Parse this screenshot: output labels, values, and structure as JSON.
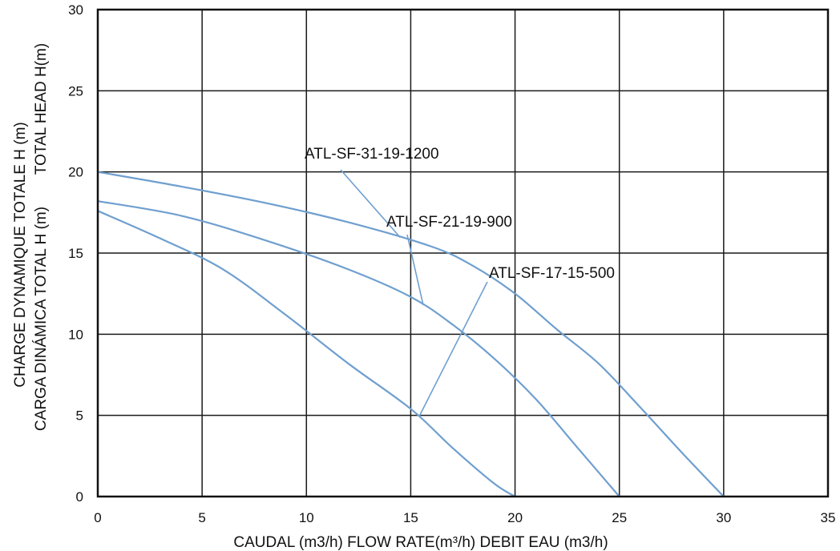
{
  "chart_data": {
    "type": "line",
    "xlabel": "CAUDAL (m3/h)  FLOW RATE(m³/h)  DEBIT EAU (m3/h)",
    "ylabel_lines": [
      "CHARGE DYNAMIQUE TOTALE H (m)",
      "CARGA DINÁMICA TOTAL H (m)",
      "TOTAL HEAD H(m)"
    ],
    "xlim": [
      0,
      35
    ],
    "ylim": [
      0,
      30
    ],
    "xticks": [
      0,
      5,
      10,
      15,
      20,
      25,
      30,
      35
    ],
    "yticks": [
      0,
      5,
      10,
      15,
      20,
      25,
      30
    ],
    "grid": true,
    "series": [
      {
        "name": "ATL-SF-31-19-1200",
        "color": "#6f9fcf",
        "x": [
          0,
          4,
          8,
          12,
          16,
          18,
          20,
          22,
          24,
          26,
          28,
          30
        ],
        "y": [
          20,
          19.1,
          18.1,
          16.9,
          15.4,
          14.2,
          12.5,
          10.3,
          8.2,
          5.5,
          2.7,
          0
        ]
      },
      {
        "name": "ATL-SF-21-19-900",
        "color": "#6f9fcf",
        "x": [
          0,
          4,
          8,
          12,
          15,
          17,
          19,
          21,
          23,
          25
        ],
        "y": [
          18.2,
          17.3,
          15.8,
          14.0,
          12.3,
          10.6,
          8.5,
          6.0,
          3.0,
          0
        ]
      },
      {
        "name": "ATL-SF-17-15-500",
        "color": "#6f9fcf",
        "x": [
          0,
          3,
          6,
          9,
          12,
          15,
          17,
          19,
          20
        ],
        "y": [
          17.6,
          15.9,
          14.0,
          11.2,
          8.2,
          5.4,
          3.0,
          0.8,
          0
        ]
      }
    ]
  }
}
